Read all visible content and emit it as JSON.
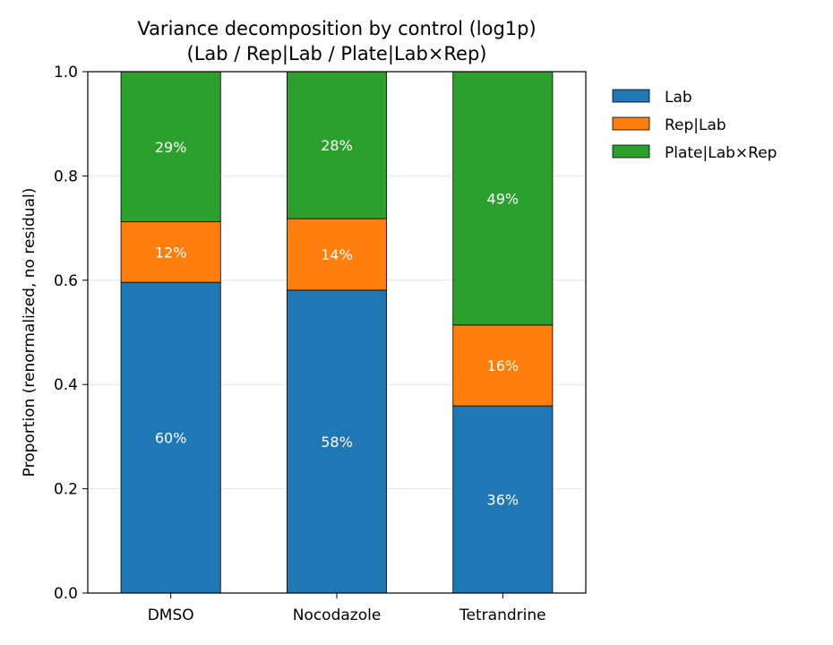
{
  "chart_data": {
    "type": "bar",
    "stacked": true,
    "title_lines": [
      "Variance decomposition by control (log1p)",
      "(Lab / Rep|Lab / Plate|Lab×Rep)"
    ],
    "ylabel": "Proportion (renormalized, no residual)",
    "xlabel": "",
    "categories": [
      "DMSO",
      "Nocodazole",
      "Tetrandrine"
    ],
    "ylim": [
      0,
      1
    ],
    "yticks": [
      0.0,
      0.2,
      0.4,
      0.6,
      0.8,
      1.0
    ],
    "ytick_labels": [
      "0.0",
      "0.2",
      "0.4",
      "0.6",
      "0.8",
      "1.0"
    ],
    "grid": "y",
    "legend_position": "outside-right",
    "series": [
      {
        "name": "Lab",
        "color": "#1f77b4",
        "values": [
          0.596,
          0.581,
          0.359
        ],
        "labels": [
          "60%",
          "58%",
          "36%"
        ]
      },
      {
        "name": "Rep|Lab",
        "color": "#ff7f0e",
        "values": [
          0.116,
          0.137,
          0.155
        ],
        "labels": [
          "12%",
          "14%",
          "16%"
        ]
      },
      {
        "name": "Plate|Lab×Rep",
        "color": "#2ca02c",
        "values": [
          0.288,
          0.282,
          0.486
        ],
        "labels": [
          "29%",
          "28%",
          "49%"
        ]
      }
    ]
  }
}
